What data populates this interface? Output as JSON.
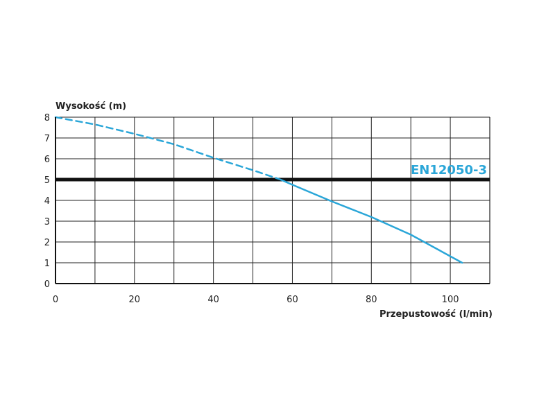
{
  "chart_data": {
    "type": "line",
    "ylabel": "Wysokość (m)",
    "xlabel": "Przepustowość (l/min)",
    "xlim": [
      0,
      110
    ],
    "ylim": [
      0,
      8
    ],
    "x_ticks": [
      0,
      20,
      40,
      60,
      80,
      100
    ],
    "x_tick_labels": [
      "0",
      "20",
      "40",
      "60",
      "80",
      "100"
    ],
    "y_ticks": [
      0,
      1,
      2,
      3,
      4,
      5,
      6,
      7,
      8
    ],
    "y_tick_labels": [
      "0",
      "1",
      "2",
      "3",
      "4",
      "5",
      "6",
      "7",
      "8"
    ],
    "grid": true,
    "series": [
      {
        "line_style": "dashed",
        "color": "#2aa6d8",
        "x": [
          0,
          10,
          20,
          30,
          40,
          50,
          57
        ],
        "y": [
          8.0,
          7.65,
          7.2,
          6.7,
          6.05,
          5.45,
          5.0
        ]
      },
      {
        "line_style": "solid",
        "color": "#2aa6d8",
        "x": [
          57,
          60,
          70,
          80,
          90,
          103
        ],
        "y": [
          5.0,
          4.75,
          3.95,
          3.2,
          2.35,
          1.0
        ]
      }
    ],
    "reference_line": {
      "label": "EN12050-3",
      "y": 5,
      "color": "#111111",
      "label_color": "#2aa6d8"
    }
  }
}
